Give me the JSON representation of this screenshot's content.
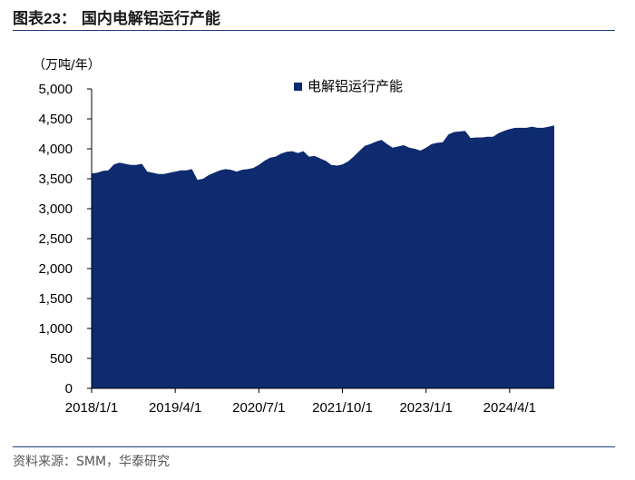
{
  "figure": {
    "label": "图表23：",
    "title": "国内电解铝运行产能",
    "source": "资料来源：SMM，华泰研究"
  },
  "chart_data": {
    "type": "area",
    "title": "国内电解铝运行产能",
    "ylabel": "（万吨/年）",
    "ylim": [
      0,
      5000
    ],
    "yticks": [
      0,
      500,
      1000,
      1500,
      2000,
      2500,
      3000,
      3500,
      4000,
      4500,
      5000
    ],
    "ytick_labels": [
      "0",
      "500",
      "1,000",
      "1,500",
      "2,000",
      "2,500",
      "3,000",
      "3,500",
      "4,000",
      "4,500",
      "5,000"
    ],
    "xtick_labels": [
      "2018/1/1",
      "2019/4/1",
      "2020/7/1",
      "2021/10/1",
      "2023/1/1",
      "2024/4/1"
    ],
    "xtick_index": [
      0,
      15,
      30,
      45,
      60,
      75
    ],
    "legend_position": "top-right",
    "grid": false,
    "colors": {
      "area": "#0d2b6e",
      "axis": "#000000"
    },
    "series": [
      {
        "name": "电解铝运行产能",
        "x": [
          "2018-01",
          "2018-02",
          "2018-03",
          "2018-04",
          "2018-05",
          "2018-06",
          "2018-07",
          "2018-08",
          "2018-09",
          "2018-10",
          "2018-11",
          "2018-12",
          "2019-01",
          "2019-02",
          "2019-03",
          "2019-04",
          "2019-05",
          "2019-06",
          "2019-07",
          "2019-08",
          "2019-09",
          "2019-10",
          "2019-11",
          "2019-12",
          "2020-01",
          "2020-02",
          "2020-03",
          "2020-04",
          "2020-05",
          "2020-06",
          "2020-07",
          "2020-08",
          "2020-09",
          "2020-10",
          "2020-11",
          "2020-12",
          "2021-01",
          "2021-02",
          "2021-03",
          "2021-04",
          "2021-05",
          "2021-06",
          "2021-07",
          "2021-08",
          "2021-09",
          "2021-10",
          "2021-11",
          "2021-12",
          "2022-01",
          "2022-02",
          "2022-03",
          "2022-04",
          "2022-05",
          "2022-06",
          "2022-07",
          "2022-08",
          "2022-09",
          "2022-10",
          "2022-11",
          "2022-12",
          "2023-01",
          "2023-02",
          "2023-03",
          "2023-04",
          "2023-05",
          "2023-06",
          "2023-07",
          "2023-08",
          "2023-09",
          "2023-10",
          "2023-11",
          "2023-12",
          "2024-01",
          "2024-02",
          "2024-03",
          "2024-04",
          "2024-05",
          "2024-06",
          "2024-07",
          "2024-08",
          "2024-09",
          "2024-10",
          "2024-11",
          "2024-12"
        ],
        "values": [
          3590,
          3600,
          3630,
          3640,
          3740,
          3770,
          3750,
          3730,
          3730,
          3750,
          3620,
          3600,
          3580,
          3580,
          3600,
          3620,
          3640,
          3640,
          3660,
          3480,
          3500,
          3560,
          3600,
          3640,
          3660,
          3650,
          3620,
          3650,
          3660,
          3680,
          3730,
          3800,
          3850,
          3870,
          3920,
          3950,
          3960,
          3930,
          3960,
          3870,
          3880,
          3840,
          3800,
          3730,
          3720,
          3740,
          3790,
          3870,
          3960,
          4050,
          4080,
          4120,
          4150,
          4080,
          4020,
          4040,
          4060,
          4020,
          4000,
          3970,
          4020,
          4080,
          4100,
          4110,
          4240,
          4280,
          4290,
          4300,
          4180,
          4190,
          4190,
          4200,
          4200,
          4260,
          4300,
          4330,
          4350,
          4350,
          4350,
          4370,
          4350,
          4350,
          4370,
          4390
        ]
      }
    ]
  }
}
